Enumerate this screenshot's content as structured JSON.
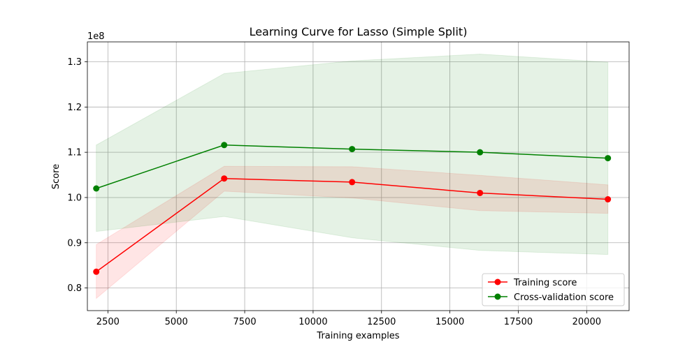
{
  "chart_data": {
    "type": "line",
    "title": "Learning Curve for Lasso (Simple Split)",
    "xlabel": "Training examples",
    "ylabel": "Score",
    "y_offset_label": "1e8",
    "xlim": [
      1750,
      21550
    ],
    "ylim": [
      0.75,
      1.344
    ],
    "xticks": [
      2500,
      5000,
      7500,
      10000,
      12500,
      15000,
      17500,
      20000
    ],
    "yticks": [
      0.8,
      0.9,
      1.0,
      1.1,
      1.2,
      1.3
    ],
    "xtick_labels": [
      "2500",
      "5000",
      "7500",
      "10000",
      "12500",
      "15000",
      "17500",
      "20000"
    ],
    "ytick_labels": [
      "0.8",
      "0.9",
      "1.0",
      "1.1",
      "1.2",
      "1.3"
    ],
    "grid": true,
    "legend_position": "lower-right",
    "x": [
      2075,
      6750,
      11425,
      16100,
      20775
    ],
    "series": [
      {
        "name": "Training score",
        "color": "#ff0000",
        "fill_color": "#ff0000",
        "values": [
          0.836,
          1.042,
          1.034,
          1.01,
          0.996
        ],
        "upper": [
          0.896,
          1.069,
          1.068,
          1.049,
          1.028
        ],
        "lower": [
          0.777,
          1.014,
          0.999,
          0.971,
          0.965
        ]
      },
      {
        "name": "Cross-validation score",
        "color": "#008000",
        "fill_color": "#008000",
        "values": [
          1.02,
          1.116,
          1.107,
          1.1,
          1.087
        ],
        "upper": [
          1.116,
          1.274,
          1.302,
          1.317,
          1.299
        ],
        "lower": [
          0.925,
          0.958,
          0.911,
          0.883,
          0.874
        ]
      }
    ]
  }
}
